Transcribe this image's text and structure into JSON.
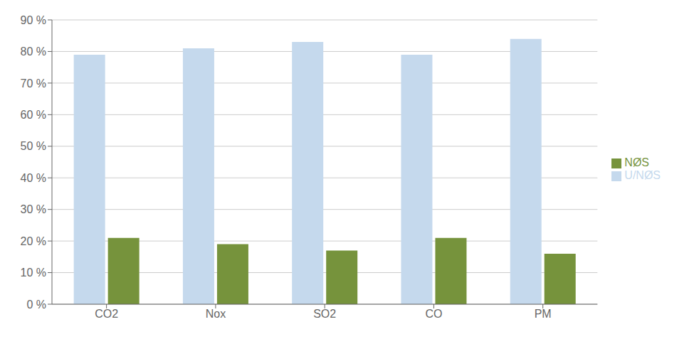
{
  "chart_data": {
    "type": "bar",
    "categories": [
      "CO2",
      "Nox",
      "SO2",
      "CO",
      "PM"
    ],
    "series": [
      {
        "name": "U/NØS",
        "color": "#C5D9ED",
        "values": [
          79,
          81,
          83,
          79,
          84
        ]
      },
      {
        "name": "NØS",
        "color": "#76933C",
        "values": [
          21,
          19,
          17,
          21,
          16
        ]
      }
    ],
    "ylim": [
      0,
      90
    ],
    "yticks": [
      {
        "value": 0,
        "label": "0 %"
      },
      {
        "value": 10,
        "label": "10 %"
      },
      {
        "value": 20,
        "label": "20 %"
      },
      {
        "value": 30,
        "label": "30 %"
      },
      {
        "value": 40,
        "label": "40 %"
      },
      {
        "value": 50,
        "label": "50 %"
      },
      {
        "value": 60,
        "label": "60 %"
      },
      {
        "value": 70,
        "label": "70 %"
      },
      {
        "value": 80,
        "label": "80 %"
      },
      {
        "value": 90,
        "label": "90 %"
      }
    ],
    "grid": true,
    "legend": "right"
  }
}
